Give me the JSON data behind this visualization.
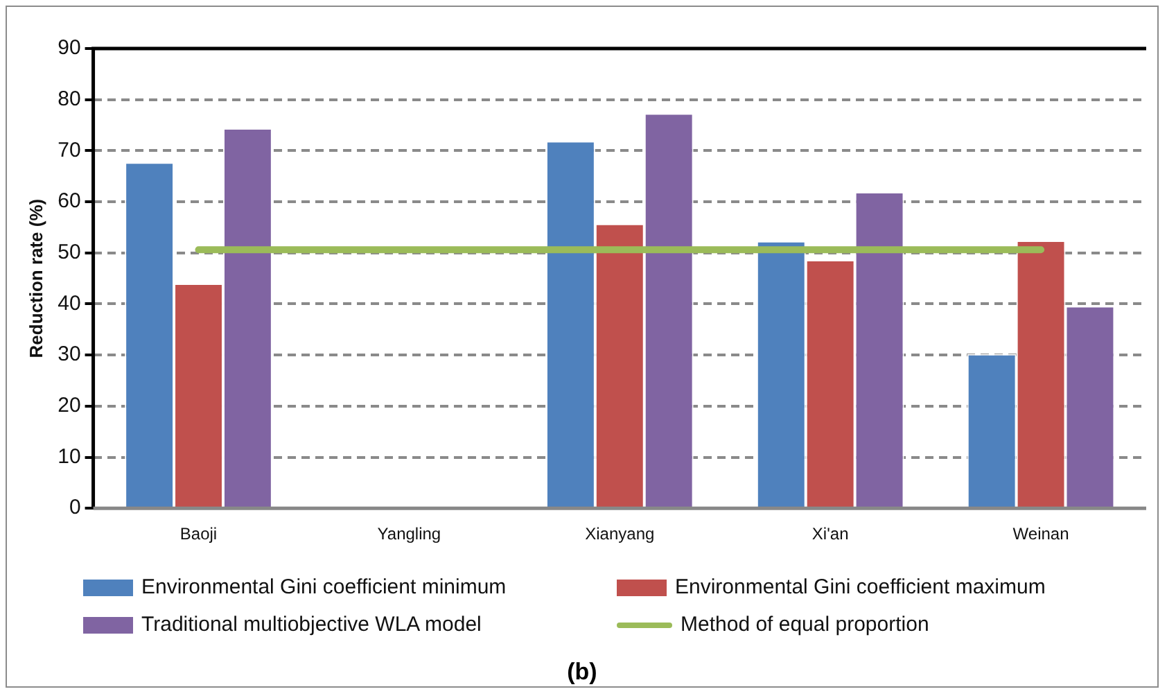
{
  "chart_data": {
    "type": "bar",
    "ylabel": "Reduction rate (%)",
    "categories": [
      "Baoji",
      "Yangling",
      "Xianyang",
      "Xi'an",
      "Weinan"
    ],
    "series": [
      {
        "name": "Environmental Gini coefficient minimum",
        "color": "#4f81bd",
        "values": [
          67.7,
          null,
          71.9,
          52.3,
          30.2
        ]
      },
      {
        "name": "Environmental Gini coefficient maximum",
        "color": "#c0504d",
        "values": [
          44.0,
          null,
          55.7,
          48.6,
          52.4
        ]
      },
      {
        "name": "Traditional multiobjective WLA model",
        "color": "#8064a2",
        "values": [
          74.4,
          null,
          77.3,
          61.9,
          39.6
        ]
      },
      {
        "name": "Method of equal proportion",
        "color": "#9bbb59",
        "type": "line",
        "values": [
          50.6,
          50.6,
          50.6,
          50.6,
          50.6
        ]
      }
    ],
    "ylim": [
      0,
      90
    ],
    "yticks": [
      0,
      10,
      20,
      30,
      40,
      50,
      60,
      70,
      80,
      90
    ],
    "grid": "y",
    "legend": "bottom",
    "marker": "none",
    "annotations": [
      "(b)"
    ]
  }
}
